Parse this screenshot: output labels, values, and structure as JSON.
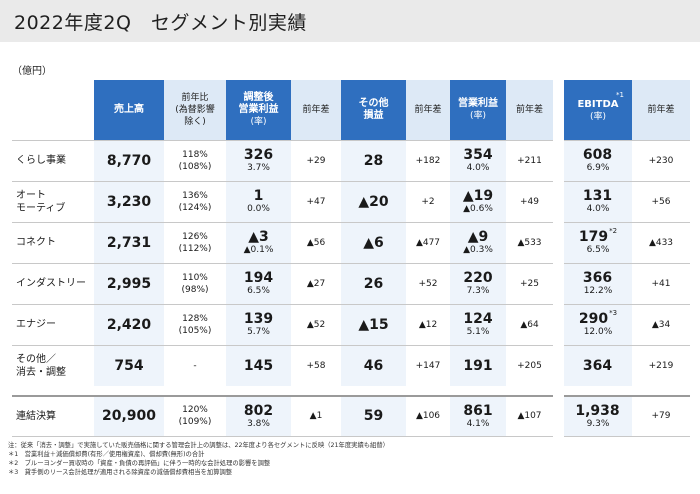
{
  "title": "2022年度2Q　セグメント別実績",
  "unit": "（億円）",
  "headers": {
    "sales": "売上高",
    "yoy_line1": "前年比",
    "yoy_line2": "(為替影響",
    "yoy_line3": "除く)",
    "adj_op_line1": "調整後",
    "adj_op_line2": "営業利益",
    "adj_op_rate": "(率)",
    "diff": "前年差",
    "other_line1": "その他",
    "other_line2": "損益",
    "op_profit": "営業利益",
    "op_rate": "(率)",
    "ebitda": "EBITDA",
    "ebitda_rate": "(率)",
    "ebitda_sup": "*1"
  },
  "rows": [
    {
      "segment": "くらし事業",
      "sales": "8,770",
      "yoy": "118%",
      "yoy_fx": "(108%)",
      "adj_op": "326",
      "adj_op_rate": "3.7%",
      "adj_op_diff": "+29",
      "other": "28",
      "other_diff": "+182",
      "op": "354",
      "op_rate": "4.0%",
      "op_diff": "+211",
      "ebitda": "608",
      "ebitda_rate": "6.9%",
      "ebitda_note": "",
      "ebitda_diff": "+230"
    },
    {
      "segment": "オート\nモーティブ",
      "sales": "3,230",
      "yoy": "136%",
      "yoy_fx": "(124%)",
      "adj_op": "1",
      "adj_op_rate": "0.0%",
      "adj_op_diff": "+47",
      "other": "▲20",
      "other_diff": "+2",
      "op": "▲19",
      "op_rate": "▲0.6%",
      "op_diff": "+49",
      "ebitda": "131",
      "ebitda_rate": "4.0%",
      "ebitda_note": "",
      "ebitda_diff": "+56"
    },
    {
      "segment": "コネクト",
      "sales": "2,731",
      "yoy": "126%",
      "yoy_fx": "(112%)",
      "adj_op": "▲3",
      "adj_op_rate": "▲0.1%",
      "adj_op_diff": "▲56",
      "other": "▲6",
      "other_diff": "▲477",
      "op": "▲9",
      "op_rate": "▲0.3%",
      "op_diff": "▲533",
      "ebitda": "179",
      "ebitda_rate": "6.5%",
      "ebitda_note": "*2",
      "ebitda_diff": "▲433"
    },
    {
      "segment": "インダストリー",
      "sales": "2,995",
      "yoy": "110%",
      "yoy_fx": "(98%)",
      "adj_op": "194",
      "adj_op_rate": "6.5%",
      "adj_op_diff": "▲27",
      "other": "26",
      "other_diff": "+52",
      "op": "220",
      "op_rate": "7.3%",
      "op_diff": "+25",
      "ebitda": "366",
      "ebitda_rate": "12.2%",
      "ebitda_note": "",
      "ebitda_diff": "+41"
    },
    {
      "segment": "エナジー",
      "sales": "2,420",
      "yoy": "128%",
      "yoy_fx": "(105%)",
      "adj_op": "139",
      "adj_op_rate": "5.7%",
      "adj_op_diff": "▲52",
      "other": "▲15",
      "other_diff": "▲12",
      "op": "124",
      "op_rate": "5.1%",
      "op_diff": "▲64",
      "ebitda": "290",
      "ebitda_rate": "12.0%",
      "ebitda_note": "*3",
      "ebitda_diff": "▲34"
    },
    {
      "segment": "その他／\n消去・調整",
      "sales": "754",
      "yoy": "-",
      "yoy_fx": "",
      "adj_op": "145",
      "adj_op_rate": "",
      "adj_op_diff": "+58",
      "other": "46",
      "other_diff": "+147",
      "op": "191",
      "op_rate": "",
      "op_diff": "+205",
      "ebitda": "364",
      "ebitda_rate": "",
      "ebitda_note": "",
      "ebitda_diff": "+219"
    }
  ],
  "total": {
    "segment": "連結決算",
    "sales": "20,900",
    "yoy": "120%",
    "yoy_fx": "(109%)",
    "adj_op": "802",
    "adj_op_rate": "3.8%",
    "adj_op_diff": "▲1",
    "other": "59",
    "other_diff": "▲106",
    "op": "861",
    "op_rate": "4.1%",
    "op_diff": "▲107",
    "ebitda": "1,938",
    "ebitda_rate": "9.3%",
    "ebitda_note": "",
    "ebitda_diff": "+79"
  },
  "footnotes": [
    "注：従来「消去・調整」で実施していた販売価格に関する管理会計上の調整は、22年度より各セグメントに反映（21年度実績も組替）",
    "＊1　営業利益＋減価償却費(有形／使用権資産)、償却費(無形)の合計",
    "＊2　ブルーヨンダー買収時の「資産・負債の再評価」に伴う一時的な会計処理の影響を調整",
    "＊3　貸手側のリース会計処理が適用される除資産の減価償却費相当を加算調整"
  ],
  "colors": {
    "accent_blue": "#2f6fbf",
    "header_light": "#dde9f6",
    "cell_shade": "#eef4fb",
    "title_bg": "#eaeaea"
  }
}
